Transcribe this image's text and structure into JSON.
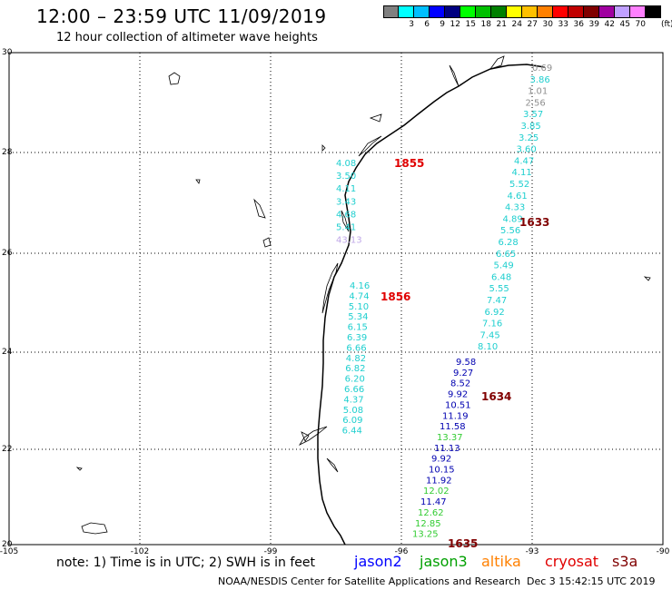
{
  "title": "12:00 – 23:59 UTC 11/09/2019",
  "subtitle": "12 hour collection of altimeter wave heights",
  "colorbar": {
    "unit": "(ft)",
    "ticks": [
      "3",
      "6",
      "9",
      "12",
      "15",
      "18",
      "21",
      "24",
      "27",
      "30",
      "33",
      "36",
      "39",
      "42",
      "45",
      "70"
    ],
    "colors": [
      "#808080",
      "#00ffff",
      "#00bfff",
      "#0000ff",
      "#000080",
      "#00ff00",
      "#00c000",
      "#008000",
      "#ffff00",
      "#ffc000",
      "#ff8000",
      "#ff0000",
      "#c00000",
      "#800000",
      "#a000a0",
      "#c0a0ff",
      "#ff80ff",
      "#000000"
    ]
  },
  "axes": {
    "lat_labels": [
      "30",
      "28",
      "26",
      "24",
      "22",
      "20"
    ],
    "lon_labels": [
      "-105",
      "-102",
      "-99",
      "-96",
      "-93",
      "-90"
    ]
  },
  "tracks": {
    "west_upper": {
      "time": "1855",
      "time_color": "#e00000",
      "values": [
        {
          "v": "4.08",
          "c": "#1fcfcf"
        },
        {
          "v": "3.50",
          "c": "#1fcfcf"
        },
        {
          "v": "4.11",
          "c": "#1fcfcf"
        },
        {
          "v": "3.43",
          "c": "#1fcfcf"
        },
        {
          "v": "4.68",
          "c": "#1fcfcf"
        },
        {
          "v": "5.41",
          "c": "#1fcfcf"
        },
        {
          "v": "43.13",
          "c": "#c0a8e8"
        }
      ]
    },
    "west_lower": {
      "time": "1856",
      "time_color": "#e00000",
      "values": [
        {
          "v": "4.16",
          "c": "#1fcfcf"
        },
        {
          "v": "4.74",
          "c": "#1fcfcf"
        },
        {
          "v": "5.10",
          "c": "#1fcfcf"
        },
        {
          "v": "5.34",
          "c": "#1fcfcf"
        },
        {
          "v": "6.15",
          "c": "#1fcfcf"
        },
        {
          "v": "6.39",
          "c": "#1fcfcf"
        },
        {
          "v": "6.66",
          "c": "#1fcfcf"
        },
        {
          "v": "4.82",
          "c": "#1fcfcf"
        },
        {
          "v": "6.82",
          "c": "#1fcfcf"
        },
        {
          "v": "6.20",
          "c": "#1fcfcf"
        },
        {
          "v": "6.66",
          "c": "#1fcfcf"
        },
        {
          "v": "4.37",
          "c": "#1fcfcf"
        },
        {
          "v": "5.08",
          "c": "#1fcfcf"
        },
        {
          "v": "6.09",
          "c": "#1fcfcf"
        },
        {
          "v": "6.44",
          "c": "#1fcfcf"
        }
      ]
    },
    "east_upper": {
      "time": "1633",
      "time_color": "#800000",
      "values": [
        {
          "v": "0.69",
          "c": "#909090"
        },
        {
          "v": "3.86",
          "c": "#1fcfcf"
        },
        {
          "v": "1.01",
          "c": "#909090"
        },
        {
          "v": "2.56",
          "c": "#909090"
        },
        {
          "v": "3.57",
          "c": "#1fcfcf"
        },
        {
          "v": "3.85",
          "c": "#1fcfcf"
        },
        {
          "v": "3.25",
          "c": "#1fcfcf"
        },
        {
          "v": "3.60",
          "c": "#1fcfcf"
        },
        {
          "v": "4.47",
          "c": "#1fcfcf"
        },
        {
          "v": "4.11",
          "c": "#1fcfcf"
        },
        {
          "v": "5.52",
          "c": "#1fcfcf"
        },
        {
          "v": "4.61",
          "c": "#1fcfcf"
        },
        {
          "v": "4.33",
          "c": "#1fcfcf"
        },
        {
          "v": "4.89",
          "c": "#1fcfcf"
        },
        {
          "v": "5.56",
          "c": "#1fcfcf"
        },
        {
          "v": "6.28",
          "c": "#1fcfcf"
        },
        {
          "v": "6.65",
          "c": "#1fcfcf"
        },
        {
          "v": "5.49",
          "c": "#1fcfcf"
        },
        {
          "v": "6.48",
          "c": "#1fcfcf"
        },
        {
          "v": "5.55",
          "c": "#1fcfcf"
        },
        {
          "v": "7.47",
          "c": "#1fcfcf"
        },
        {
          "v": "6.92",
          "c": "#1fcfcf"
        },
        {
          "v": "7.16",
          "c": "#1fcfcf"
        },
        {
          "v": "7.45",
          "c": "#1fcfcf"
        },
        {
          "v": "8.10",
          "c": "#1fcfcf"
        }
      ]
    },
    "east_lower": {
      "time1": "1634",
      "time2": "1635",
      "time_color": "#800000",
      "values": [
        {
          "v": "9.58",
          "c": "#0000b0"
        },
        {
          "v": "9.27",
          "c": "#0000b0"
        },
        {
          "v": "8.52",
          "c": "#0000b0"
        },
        {
          "v": "9.92",
          "c": "#0000b0"
        },
        {
          "v": "10.51",
          "c": "#0000b0"
        },
        {
          "v": "11.19",
          "c": "#0000b0"
        },
        {
          "v": "11.58",
          "c": "#0000b0"
        },
        {
          "v": "13.37",
          "c": "#33cc33"
        },
        {
          "v": "11.13",
          "c": "#0000b0"
        },
        {
          "v": "9.92",
          "c": "#0000b0"
        },
        {
          "v": "10.15",
          "c": "#0000b0"
        },
        {
          "v": "11.92",
          "c": "#0000b0"
        },
        {
          "v": "12.02",
          "c": "#33cc33"
        },
        {
          "v": "11.47",
          "c": "#0000b0"
        },
        {
          "v": "12.62",
          "c": "#33cc33"
        },
        {
          "v": "12.85",
          "c": "#33cc33"
        },
        {
          "v": "13.25",
          "c": "#33cc33"
        }
      ]
    }
  },
  "note": "note:  1) Time is in UTC;  2) SWH is in feet",
  "satellites": [
    {
      "name": "jason2",
      "color": "#0000ff"
    },
    {
      "name": "jason3",
      "color": "#00a000"
    },
    {
      "name": "altika",
      "color": "#ff8000"
    },
    {
      "name": "cryosat",
      "color": "#e00000"
    },
    {
      "name": "s3a",
      "color": "#800000"
    }
  ],
  "footer": "NOAA/NESDIS Center for Satellite Applications and Research",
  "footer_date": "Dec  3 15:42:15 UTC 2019"
}
